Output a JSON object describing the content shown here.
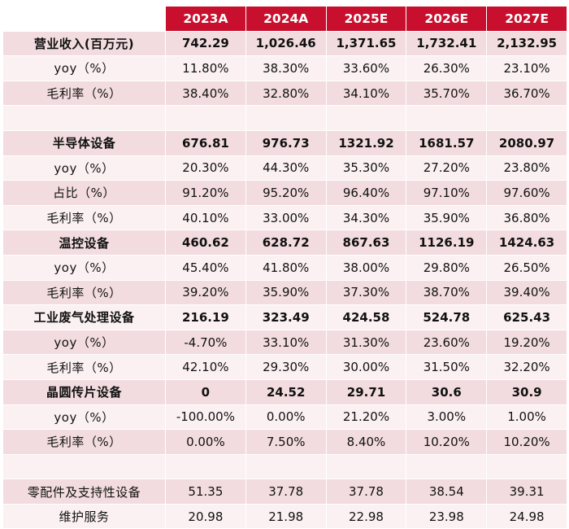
{
  "header": [
    "",
    "2023A",
    "2024A",
    "2025E",
    "2026E",
    "2027E"
  ],
  "rows": [
    {
      "label": "营业收入(百万元)",
      "bold": true,
      "values": [
        "742.29",
        "1,026.46",
        "1,371.65",
        "1,732.41",
        "2,132.95"
      ]
    },
    {
      "label": "yoy（%）",
      "bold": false,
      "values": [
        "11.80%",
        "38.30%",
        "33.60%",
        "26.30%",
        "23.10%"
      ]
    },
    {
      "label": "毛利率（%）",
      "bold": false,
      "values": [
        "38.40%",
        "32.80%",
        "34.10%",
        "35.70%",
        "36.70%"
      ]
    },
    {
      "label": "",
      "bold": false,
      "values": [
        "",
        "",
        "",
        "",
        ""
      ]
    },
    {
      "label": "半导体设备",
      "bold": true,
      "values": [
        "676.81",
        "976.73",
        "1321.92",
        "1681.57",
        "2080.97"
      ]
    },
    {
      "label": "yoy（%）",
      "bold": false,
      "values": [
        "20.30%",
        "44.30%",
        "35.30%",
        "27.20%",
        "23.80%"
      ]
    },
    {
      "label": "占比（%）",
      "bold": false,
      "values": [
        "91.20%",
        "95.20%",
        "96.40%",
        "97.10%",
        "97.60%"
      ]
    },
    {
      "label": "毛利率（%）",
      "bold": false,
      "values": [
        "40.10%",
        "33.00%",
        "34.30%",
        "35.90%",
        "36.80%"
      ]
    },
    {
      "label": "温控设备",
      "bold": true,
      "values": [
        "460.62",
        "628.72",
        "867.63",
        "1126.19",
        "1424.63"
      ]
    },
    {
      "label": "yoy（%）",
      "bold": false,
      "values": [
        "45.40%",
        "41.80%",
        "38.00%",
        "29.80%",
        "26.50%"
      ]
    },
    {
      "label": "毛利率（%）",
      "bold": false,
      "values": [
        "39.20%",
        "35.90%",
        "37.30%",
        "38.70%",
        "39.40%"
      ]
    },
    {
      "label": "工业废气处理设备",
      "bold": true,
      "values": [
        "216.19",
        "323.49",
        "424.58",
        "524.78",
        "625.43"
      ]
    },
    {
      "label": "yoy（%）",
      "bold": false,
      "values": [
        "-4.70%",
        "33.10%",
        "31.30%",
        "23.60%",
        "19.20%"
      ]
    },
    {
      "label": "毛利率（%）",
      "bold": false,
      "values": [
        "42.10%",
        "29.30%",
        "30.00%",
        "31.50%",
        "32.20%"
      ]
    },
    {
      "label": "晶圆传片设备",
      "bold": true,
      "values": [
        "0",
        "24.52",
        "29.71",
        "30.6",
        "30.9"
      ]
    },
    {
      "label": "yoy（%）",
      "bold": false,
      "values": [
        "-100.00%",
        "0.00%",
        "21.20%",
        "3.00%",
        "1.00%"
      ]
    },
    {
      "label": "毛利率（%）",
      "bold": false,
      "values": [
        "0.00%",
        "7.50%",
        "8.40%",
        "10.20%",
        "10.20%"
      ]
    },
    {
      "label": "",
      "bold": false,
      "values": [
        "",
        "",
        "",
        "",
        ""
      ]
    },
    {
      "label": "零配件及支持性设备",
      "bold": false,
      "values": [
        "51.35",
        "37.78",
        "37.78",
        "38.54",
        "39.31"
      ]
    },
    {
      "label": "维护服务",
      "bold": false,
      "values": [
        "20.98",
        "21.98",
        "22.98",
        "23.98",
        "24.98"
      ]
    }
  ]
}
